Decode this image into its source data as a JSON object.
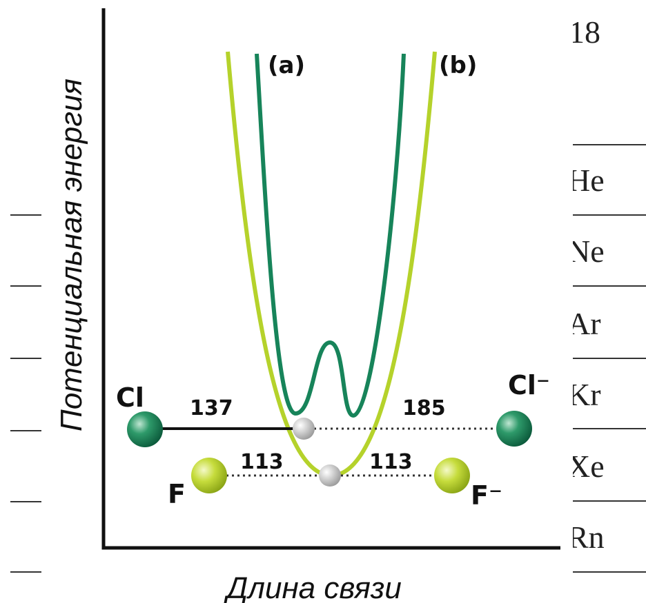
{
  "background_table": {
    "header": "18",
    "rows": [
      "He",
      "Ne",
      "Ar",
      "Kr",
      "Xe",
      "Rn"
    ]
  },
  "diagram": {
    "y_axis_label": "Потенциальная энергия",
    "x_axis_label": "Длина связи",
    "curve_labels": [
      "(a)",
      "(b)"
    ],
    "atoms": {
      "cl": "Cl",
      "cl_ion": "Cl⁻",
      "f": "F",
      "f_ion": "F⁻"
    },
    "distances": {
      "cl": "137",
      "cl_ion": "185",
      "f": "113",
      "f_ion": "113"
    }
  }
}
